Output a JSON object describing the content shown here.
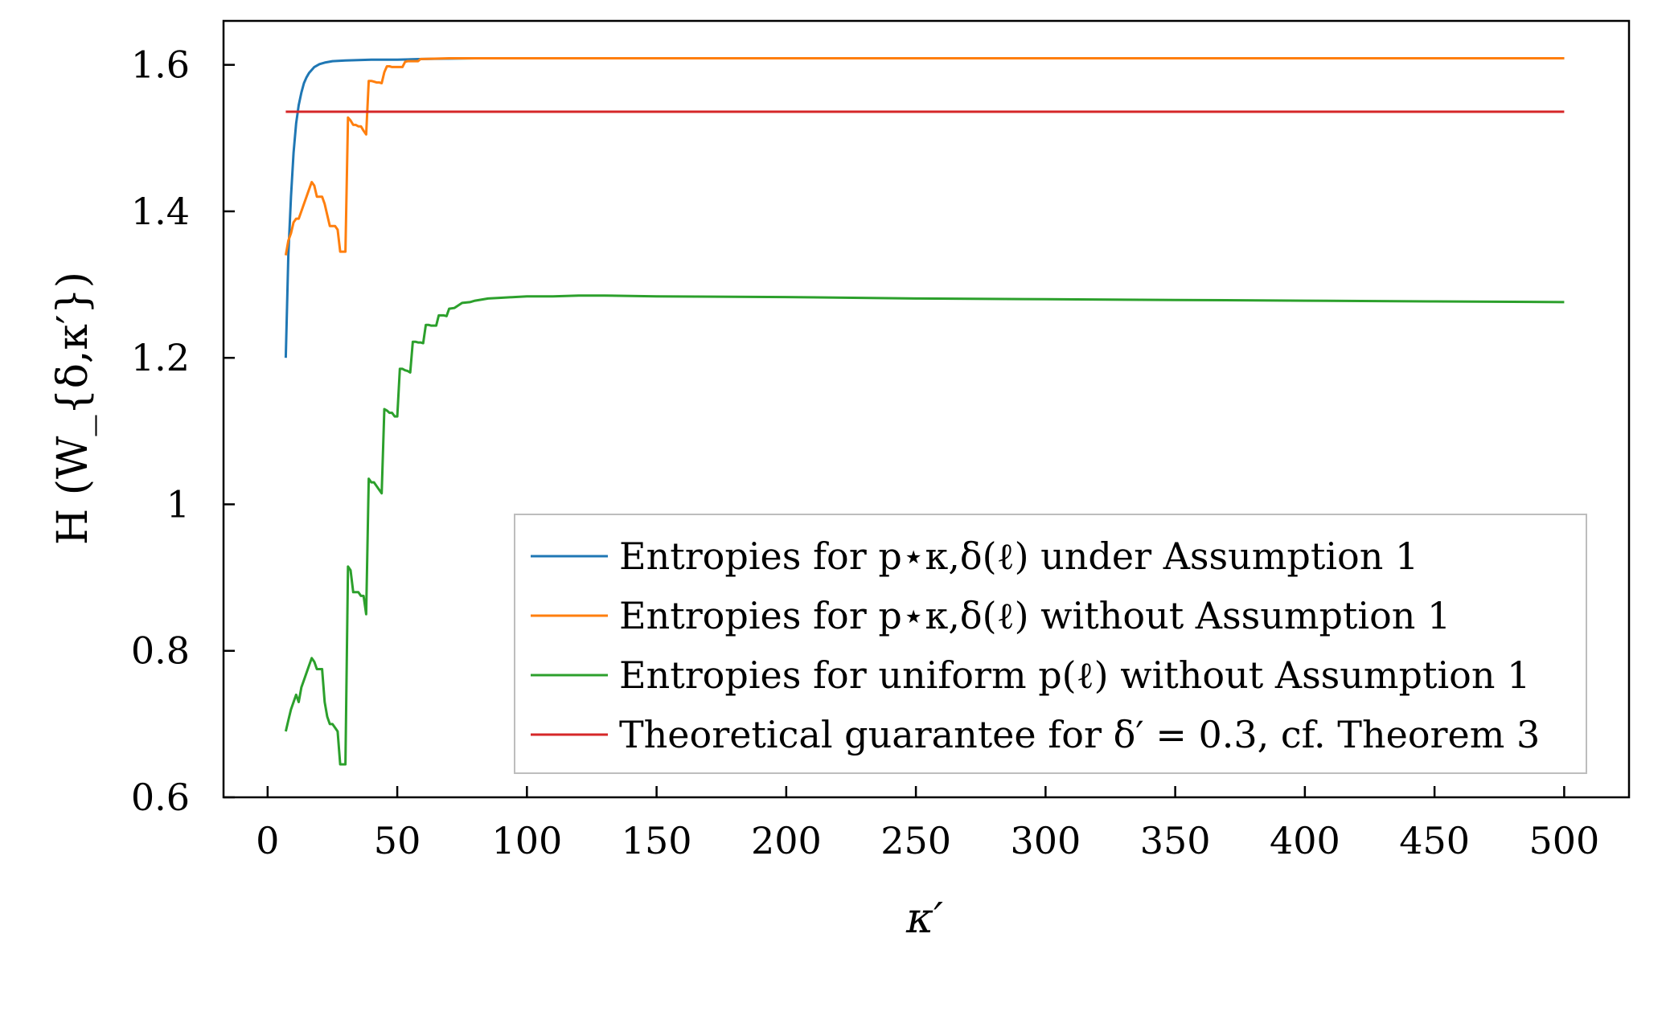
{
  "chart_data": {
    "type": "line",
    "xlabel": "κ′",
    "ylabel": "H (W_{δ,κ′})",
    "xlim": [
      -17,
      525
    ],
    "ylim": [
      0.6,
      1.66
    ],
    "xticks": [
      0,
      50,
      100,
      150,
      200,
      250,
      300,
      350,
      400,
      450,
      500
    ],
    "xtick_labels": [
      "0",
      "50",
      "100",
      "150",
      "200",
      "250",
      "300",
      "350",
      "400",
      "450",
      "500"
    ],
    "yticks": [
      0.6,
      0.8,
      1.0,
      1.2,
      1.4,
      1.6
    ],
    "ytick_labels": [
      "0.6",
      "0.8",
      "1",
      "1.2",
      "1.4",
      "1.6"
    ],
    "grid": false,
    "legend_position": "bottom-right",
    "series": [
      {
        "name": "Entropies for p⋆κ,δ(ℓ) under Assumption 1",
        "color": "#1f77b4",
        "x": [
          7,
          8,
          9,
          10,
          11,
          12,
          13,
          14,
          15,
          16,
          18,
          20,
          22,
          25,
          30,
          40,
          50,
          60,
          80,
          100,
          150,
          200,
          300,
          400,
          500
        ],
        "y": [
          1.2,
          1.34,
          1.42,
          1.48,
          1.52,
          1.545,
          1.562,
          1.575,
          1.583,
          1.589,
          1.597,
          1.601,
          1.603,
          1.605,
          1.606,
          1.607,
          1.607,
          1.608,
          1.609,
          1.609,
          1.609,
          1.609,
          1.609,
          1.609,
          1.609
        ]
      },
      {
        "name": "Entropies for p⋆κ,δ(ℓ) without Assumption 1",
        "color": "#ff7f0e",
        "x": [
          7,
          8,
          9,
          10,
          11,
          12,
          13,
          14,
          15,
          16,
          17,
          18,
          19,
          20,
          21,
          22,
          23,
          24,
          25,
          26,
          27,
          28,
          29,
          30,
          31,
          32,
          33,
          34,
          35,
          36,
          37,
          38,
          39,
          40,
          41,
          42,
          43,
          44,
          45,
          46,
          47,
          48,
          49,
          50,
          51,
          52,
          53,
          54,
          55,
          56,
          57,
          58,
          59,
          60,
          70,
          100,
          200,
          300,
          400,
          500
        ],
        "y": [
          1.34,
          1.36,
          1.37,
          1.385,
          1.39,
          1.39,
          1.4,
          1.41,
          1.42,
          1.43,
          1.44,
          1.435,
          1.42,
          1.42,
          1.42,
          1.41,
          1.395,
          1.38,
          1.38,
          1.38,
          1.375,
          1.345,
          1.345,
          1.345,
          1.528,
          1.524,
          1.518,
          1.518,
          1.516,
          1.516,
          1.51,
          1.505,
          1.578,
          1.578,
          1.577,
          1.576,
          1.576,
          1.575,
          1.59,
          1.598,
          1.598,
          1.597,
          1.597,
          1.597,
          1.597,
          1.597,
          1.604,
          1.605,
          1.605,
          1.605,
          1.605,
          1.605,
          1.608,
          1.608,
          1.609,
          1.609,
          1.609,
          1.609,
          1.609,
          1.609
        ]
      },
      {
        "name": "Entropies for uniform p(ℓ) without Assumption 1",
        "color": "#2ca02c",
        "x": [
          7,
          8,
          9,
          10,
          11,
          12,
          13,
          14,
          15,
          16,
          17,
          18,
          19,
          20,
          21,
          22,
          23,
          24,
          25,
          26,
          27,
          28,
          29,
          30,
          31,
          32,
          33,
          34,
          35,
          36,
          37,
          38,
          39,
          40,
          41,
          42,
          43,
          44,
          45,
          46,
          47,
          48,
          49,
          50,
          51,
          52,
          53,
          54,
          55,
          56,
          57,
          58,
          59,
          60,
          61,
          62,
          63,
          64,
          65,
          66,
          67,
          68,
          69,
          70,
          72,
          75,
          78,
          80,
          85,
          90,
          95,
          100,
          110,
          120,
          130,
          150,
          200,
          250,
          300,
          350,
          400,
          450,
          500
        ],
        "y": [
          0.69,
          0.705,
          0.72,
          0.73,
          0.74,
          0.73,
          0.75,
          0.76,
          0.77,
          0.78,
          0.79,
          0.785,
          0.775,
          0.775,
          0.775,
          0.73,
          0.71,
          0.7,
          0.7,
          0.695,
          0.69,
          0.645,
          0.645,
          0.645,
          0.915,
          0.91,
          0.88,
          0.88,
          0.88,
          0.875,
          0.875,
          0.85,
          1.035,
          1.03,
          1.03,
          1.025,
          1.02,
          1.015,
          1.13,
          1.128,
          1.125,
          1.125,
          1.12,
          1.12,
          1.185,
          1.185,
          1.183,
          1.182,
          1.18,
          1.222,
          1.222,
          1.221,
          1.221,
          1.22,
          1.245,
          1.245,
          1.244,
          1.244,
          1.244,
          1.258,
          1.258,
          1.258,
          1.257,
          1.267,
          1.268,
          1.275,
          1.276,
          1.278,
          1.281,
          1.282,
          1.283,
          1.284,
          1.284,
          1.285,
          1.285,
          1.284,
          1.283,
          1.281,
          1.28,
          1.279,
          1.278,
          1.277,
          1.276
        ]
      },
      {
        "name": "Theoretical guarantee for δ′ = 0.3, cf. Theorem 3",
        "color": "#d62728",
        "x": [
          7,
          500
        ],
        "y": [
          1.536,
          1.536
        ]
      }
    ]
  }
}
